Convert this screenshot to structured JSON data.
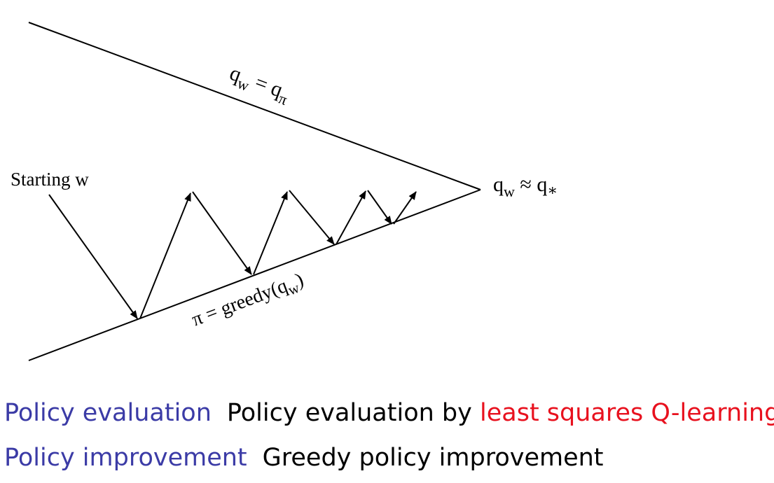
{
  "diagram": {
    "labels": {
      "top_line": {
        "base": "q",
        "sub": "w",
        "rel": " = q",
        "rel_sub": "π"
      },
      "bottom_line": {
        "prefix": "π = greedy(q",
        "sub": "w",
        "suffix": ")"
      },
      "apex": {
        "base": "q",
        "sub": "w",
        "rel": " ≈ q",
        "rel_sub": "∗"
      },
      "start": "Starting w"
    }
  },
  "captions": {
    "evaluation": {
      "term": "Policy evaluation",
      "text_plain": "Policy evaluation by",
      "text_highlight": "least squares Q-learning"
    },
    "improvement": {
      "term": "Policy improvement",
      "text_plain": "Greedy policy improvement"
    }
  },
  "colors": {
    "term": "#3b3ba6",
    "highlight": "#e8111e",
    "text": "#000000",
    "line": "#000000"
  }
}
